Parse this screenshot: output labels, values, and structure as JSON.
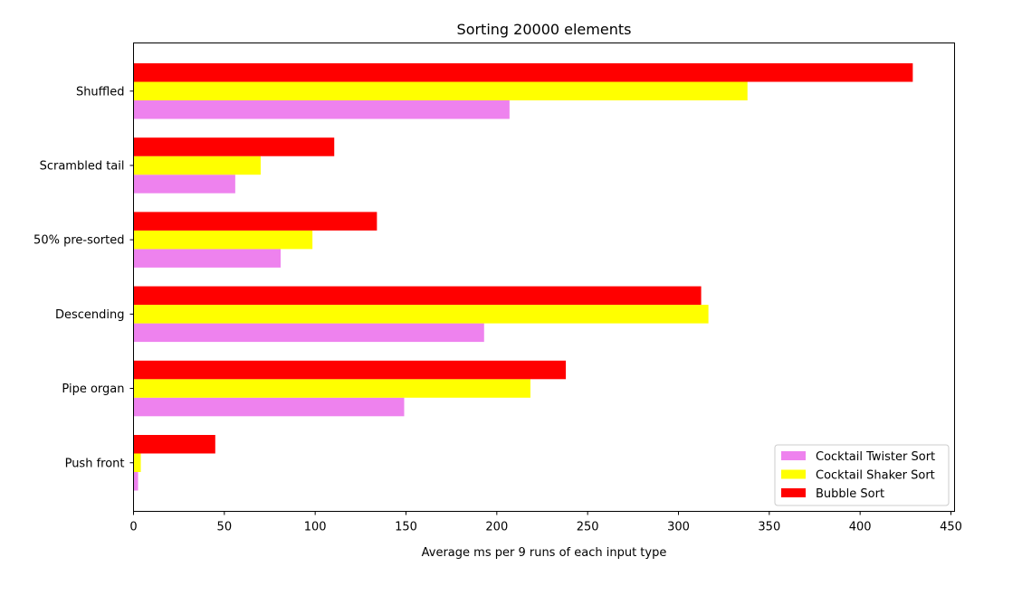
{
  "chart_data": {
    "type": "bar",
    "orientation": "horizontal",
    "title": "Sorting 20000 elements",
    "xlabel": "Average ms per 9 runs of each input type",
    "ylabel": "",
    "xlim": [
      0,
      452
    ],
    "xticks": [
      0,
      50,
      100,
      150,
      200,
      250,
      300,
      350,
      400,
      450
    ],
    "categories": [
      "Shuffled",
      "Scrambled tail",
      "50% pre-sorted",
      "Descending",
      "Pipe organ",
      "Push front"
    ],
    "series": [
      {
        "name": "Cocktail Twister Sort",
        "color": "#ee82ee",
        "values": [
          207,
          56,
          81,
          193,
          149,
          2.5
        ]
      },
      {
        "name": "Cocktail Shaker Sort",
        "color": "#ffff00",
        "values": [
          338,
          70,
          98.5,
          316.5,
          218.5,
          4
        ]
      },
      {
        "name": "Bubble Sort",
        "color": "#ff0000",
        "values": [
          429,
          110.5,
          134,
          312.5,
          238,
          45
        ]
      }
    ],
    "legend_position": "lower right",
    "grid": false
  }
}
